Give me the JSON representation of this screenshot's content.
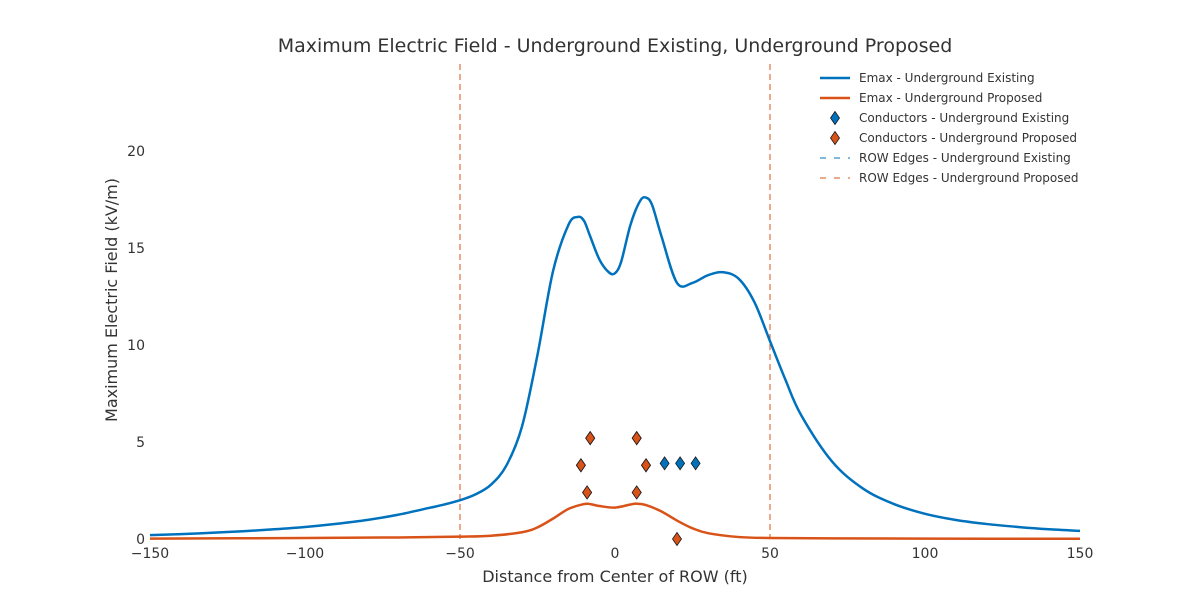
{
  "chart_data": {
    "type": "line",
    "title": "Maximum Electric Field - Underground Existing, Underground Proposed",
    "xlabel": "Distance from Center of ROW (ft)",
    "ylabel": "Maximum Electric Field (kV/m)",
    "xlim": [
      -150,
      150
    ],
    "ylim": [
      0,
      22
    ],
    "xticks": [
      -150,
      -100,
      -50,
      0,
      50,
      100,
      150
    ],
    "xtick_labels": [
      "−150",
      "−100",
      "−50",
      "0",
      "50",
      "100",
      "150"
    ],
    "yticks": [
      0,
      5,
      10,
      15,
      20
    ],
    "ytick_labels": [
      "0",
      "5",
      "10",
      "15",
      "20"
    ],
    "grid": false,
    "legend_position": "top-right",
    "colors": {
      "existing": "#0072bd",
      "proposed": "#d95319"
    },
    "series": [
      {
        "name": "Emax - Underground Existing",
        "kind": "line",
        "color": "#0072bd",
        "x": [
          -150,
          -140,
          -130,
          -120,
          -110,
          -100,
          -90,
          -80,
          -70,
          -60,
          -55,
          -50,
          -45,
          -40,
          -35,
          -30,
          -25,
          -20,
          -15,
          -12,
          -10,
          -8,
          -5,
          -2,
          0,
          2,
          5,
          8,
          10,
          12,
          15,
          20,
          25,
          30,
          35,
          40,
          45,
          50,
          55,
          60,
          70,
          80,
          90,
          100,
          110,
          120,
          130,
          140,
          150
        ],
        "y": [
          0.2,
          0.25,
          0.32,
          0.4,
          0.5,
          0.62,
          0.78,
          0.98,
          1.25,
          1.6,
          1.78,
          2.0,
          2.3,
          2.8,
          3.8,
          5.8,
          9.5,
          13.8,
          16.2,
          16.6,
          16.4,
          15.6,
          14.4,
          13.75,
          13.7,
          14.3,
          16.2,
          17.4,
          17.6,
          17.2,
          15.6,
          13.2,
          13.2,
          13.6,
          13.75,
          13.4,
          12.2,
          10.2,
          8.2,
          6.4,
          4.0,
          2.6,
          1.8,
          1.3,
          0.98,
          0.77,
          0.62,
          0.5,
          0.42
        ]
      },
      {
        "name": "Emax - Underground Proposed",
        "kind": "line",
        "color": "#d95319",
        "x": [
          -150,
          -100,
          -70,
          -50,
          -40,
          -30,
          -25,
          -20,
          -15,
          -10,
          -8,
          -5,
          0,
          5,
          7,
          10,
          15,
          20,
          25,
          30,
          40,
          50,
          70,
          100,
          150
        ],
        "y": [
          0.02,
          0.05,
          0.08,
          0.12,
          0.17,
          0.35,
          0.6,
          1.05,
          1.55,
          1.8,
          1.8,
          1.7,
          1.62,
          1.78,
          1.82,
          1.75,
          1.42,
          0.95,
          0.55,
          0.3,
          0.1,
          0.05,
          0.03,
          0.02,
          0.01
        ]
      },
      {
        "name": "Conductors - Underground Existing",
        "kind": "marker",
        "color": "#0072bd",
        "x": [
          -8,
          7,
          -11,
          10,
          16,
          21,
          26,
          -9,
          7
        ],
        "y": [
          5.2,
          5.2,
          3.8,
          3.8,
          3.9,
          3.9,
          3.9,
          2.4,
          2.4
        ]
      },
      {
        "name": "Conductors - Underground Proposed",
        "kind": "marker",
        "color": "#d95319",
        "x": [
          -8,
          7,
          -11,
          10,
          -9,
          7,
          20
        ],
        "y": [
          5.2,
          5.2,
          3.8,
          3.8,
          2.4,
          2.4,
          0
        ]
      },
      {
        "name": "ROW Edges - Underground Existing",
        "kind": "vline",
        "color": "#0072bd",
        "x": [
          -50,
          50
        ]
      },
      {
        "name": "ROW Edges - Underground Proposed",
        "kind": "vline",
        "color": "#d95319",
        "x": [
          -50,
          50
        ]
      }
    ]
  }
}
